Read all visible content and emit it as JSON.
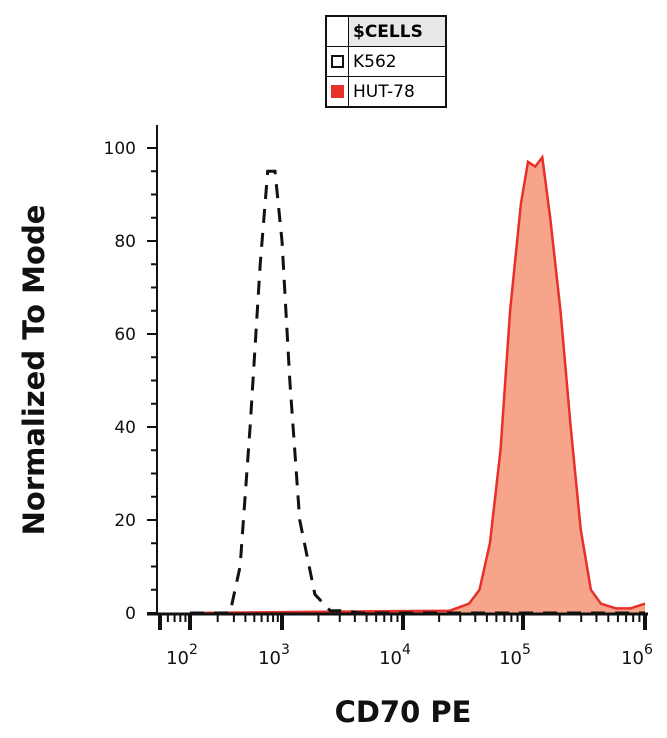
{
  "chart_data": {
    "type": "area",
    "xlabel": "CD70 PE",
    "ylabel": "Normalized To Mode",
    "xscale": "log",
    "xlim": [
      50,
      1000000
    ],
    "ylim": [
      0,
      100
    ],
    "x_ticks": [
      {
        "base": "10",
        "exp": "2",
        "value": 100
      },
      {
        "base": "10",
        "exp": "3",
        "value": 1000
      },
      {
        "base": "10",
        "exp": "4",
        "value": 10000
      },
      {
        "base": "10",
        "exp": "5",
        "value": 100000
      },
      {
        "base": "10",
        "exp": "6",
        "value": 1000000
      }
    ],
    "y_ticks": [
      "0",
      "20",
      "40",
      "60",
      "80",
      "100"
    ],
    "legend": {
      "title": "$CELLS",
      "placement": "top-center"
    },
    "series": [
      {
        "name": "K562",
        "style": "dashed-unfilled",
        "color": "#111111",
        "x": [
          100,
          272,
          350,
          450,
          580,
          700,
          840,
          1000,
          1160,
          1400,
          1870,
          2500,
          3300,
          4400,
          1000000
        ],
        "y": [
          0,
          0,
          10,
          40,
          75,
          95,
          95,
          80,
          50,
          20,
          4,
          0.5,
          0.5,
          0,
          0
        ]
      },
      {
        "name": "HUT-78",
        "style": "filled",
        "color": "#e8302a",
        "fill": "#f6a58a",
        "x": [
          100,
          24500,
          35500,
          43400,
          53000,
          65000,
          78000,
          96000,
          110000,
          126000,
          144000,
          167000,
          203000,
          246000,
          297000,
          360000,
          436000,
          580000,
          760000,
          1000000
        ],
        "y": [
          0,
          0.5,
          2,
          5,
          15,
          35,
          65,
          88,
          97,
          96,
          98,
          85,
          65,
          40,
          18,
          5,
          2,
          1,
          1,
          2
        ]
      }
    ]
  }
}
